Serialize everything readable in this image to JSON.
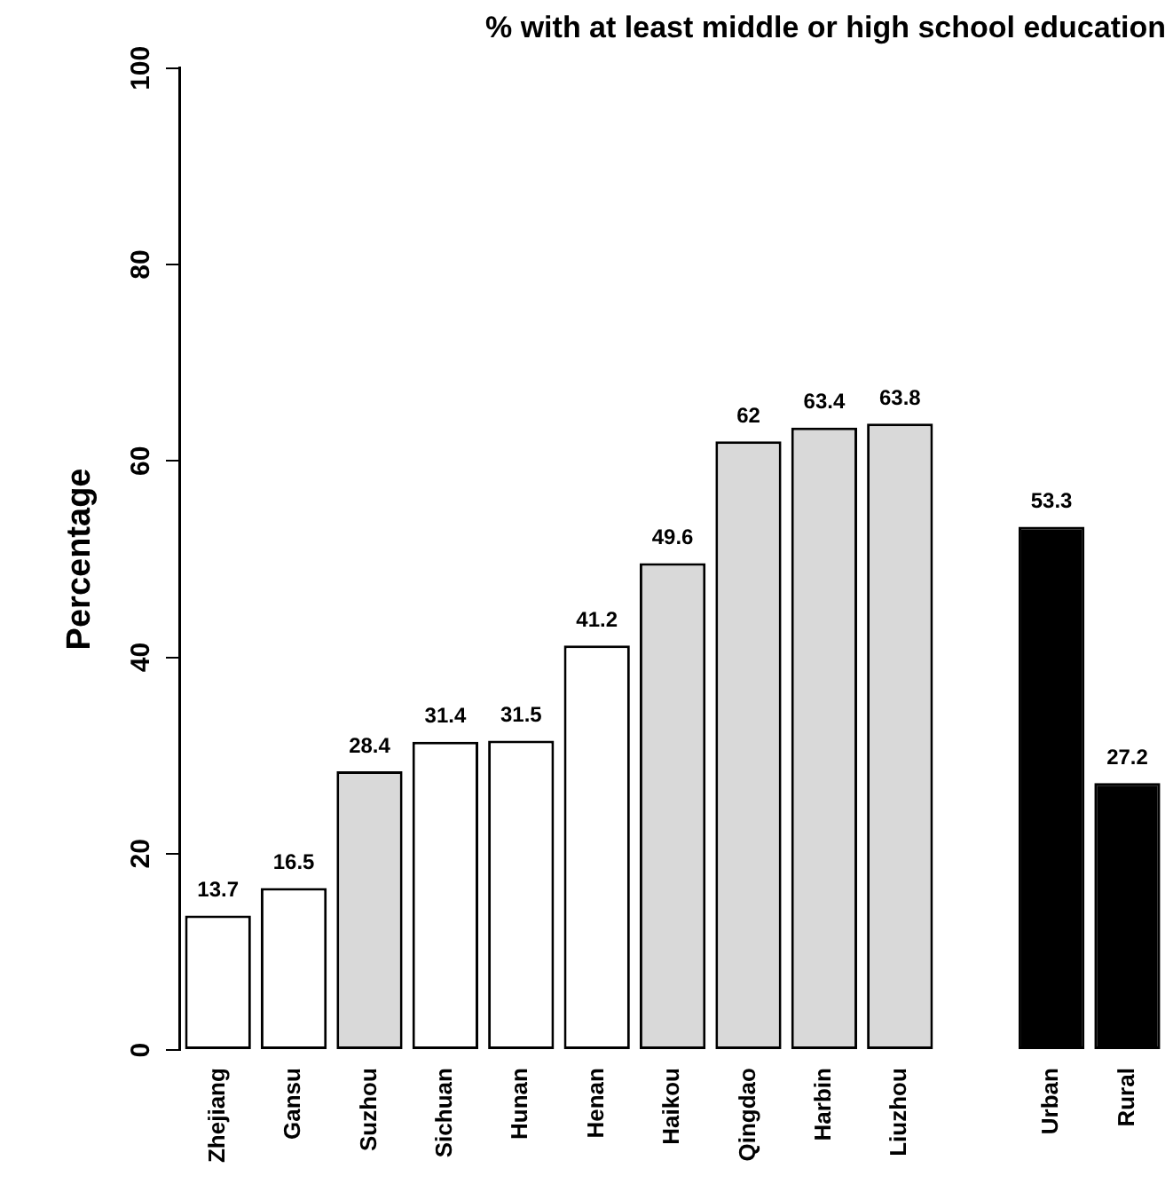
{
  "chart_data": {
    "type": "bar",
    "title": "% with at least middle or high school education",
    "ylabel": "Percentage",
    "categories": [
      "Zhejiang",
      "Gansu",
      "Suzhou",
      "Sichuan",
      "Hunan",
      "Henan",
      "Haikou",
      "Qingdao",
      "Harbin",
      "Liuzhou",
      null,
      "Urban",
      "Rural"
    ],
    "values": [
      13.7,
      16.5,
      28.4,
      31.4,
      31.5,
      41.2,
      49.6,
      62,
      63.4,
      63.8,
      null,
      53.3,
      27.2
    ],
    "colors": [
      "#ffffff",
      "#ffffff",
      "#d9d9d9",
      "#ffffff",
      "#ffffff",
      "#ffffff",
      "#d9d9d9",
      "#d9d9d9",
      "#d9d9d9",
      "#d9d9d9",
      null,
      "#000000",
      "#000000"
    ],
    "ylim": [
      0,
      100
    ],
    "yticks": [
      0,
      20,
      40,
      60,
      80,
      100
    ],
    "grid": false,
    "legend": false,
    "data_labels": true
  }
}
